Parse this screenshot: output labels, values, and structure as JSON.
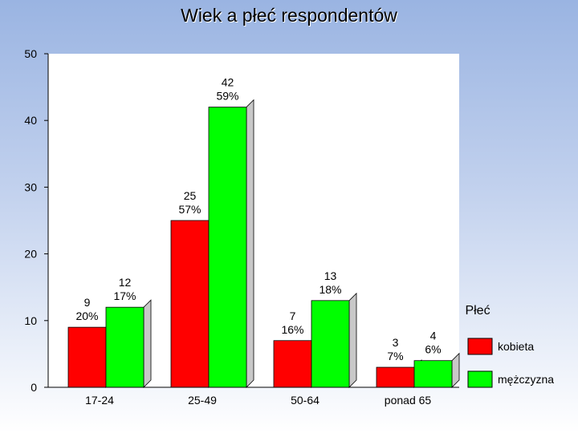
{
  "chart_data": {
    "type": "bar",
    "title": "Wiek a płeć respondentów",
    "categories": [
      "17-24",
      "25-49",
      "50-64",
      "ponad 65"
    ],
    "series": [
      {
        "name": "kobieta",
        "color": "#ff0000",
        "values": [
          9,
          25,
          7,
          3
        ],
        "percent_labels": [
          "20%",
          "57%",
          "16%",
          "7%"
        ]
      },
      {
        "name": "mężczyzna",
        "color": "#00ff00",
        "values": [
          12,
          42,
          13,
          4
        ],
        "percent_labels": [
          "17%",
          "59%",
          "18%",
          "6%"
        ]
      }
    ],
    "ylim": [
      0,
      50
    ],
    "yticks": [
      0,
      10,
      20,
      30,
      40,
      50
    ],
    "legend_title": "Płeć",
    "legend_position": "right",
    "grid": false
  }
}
